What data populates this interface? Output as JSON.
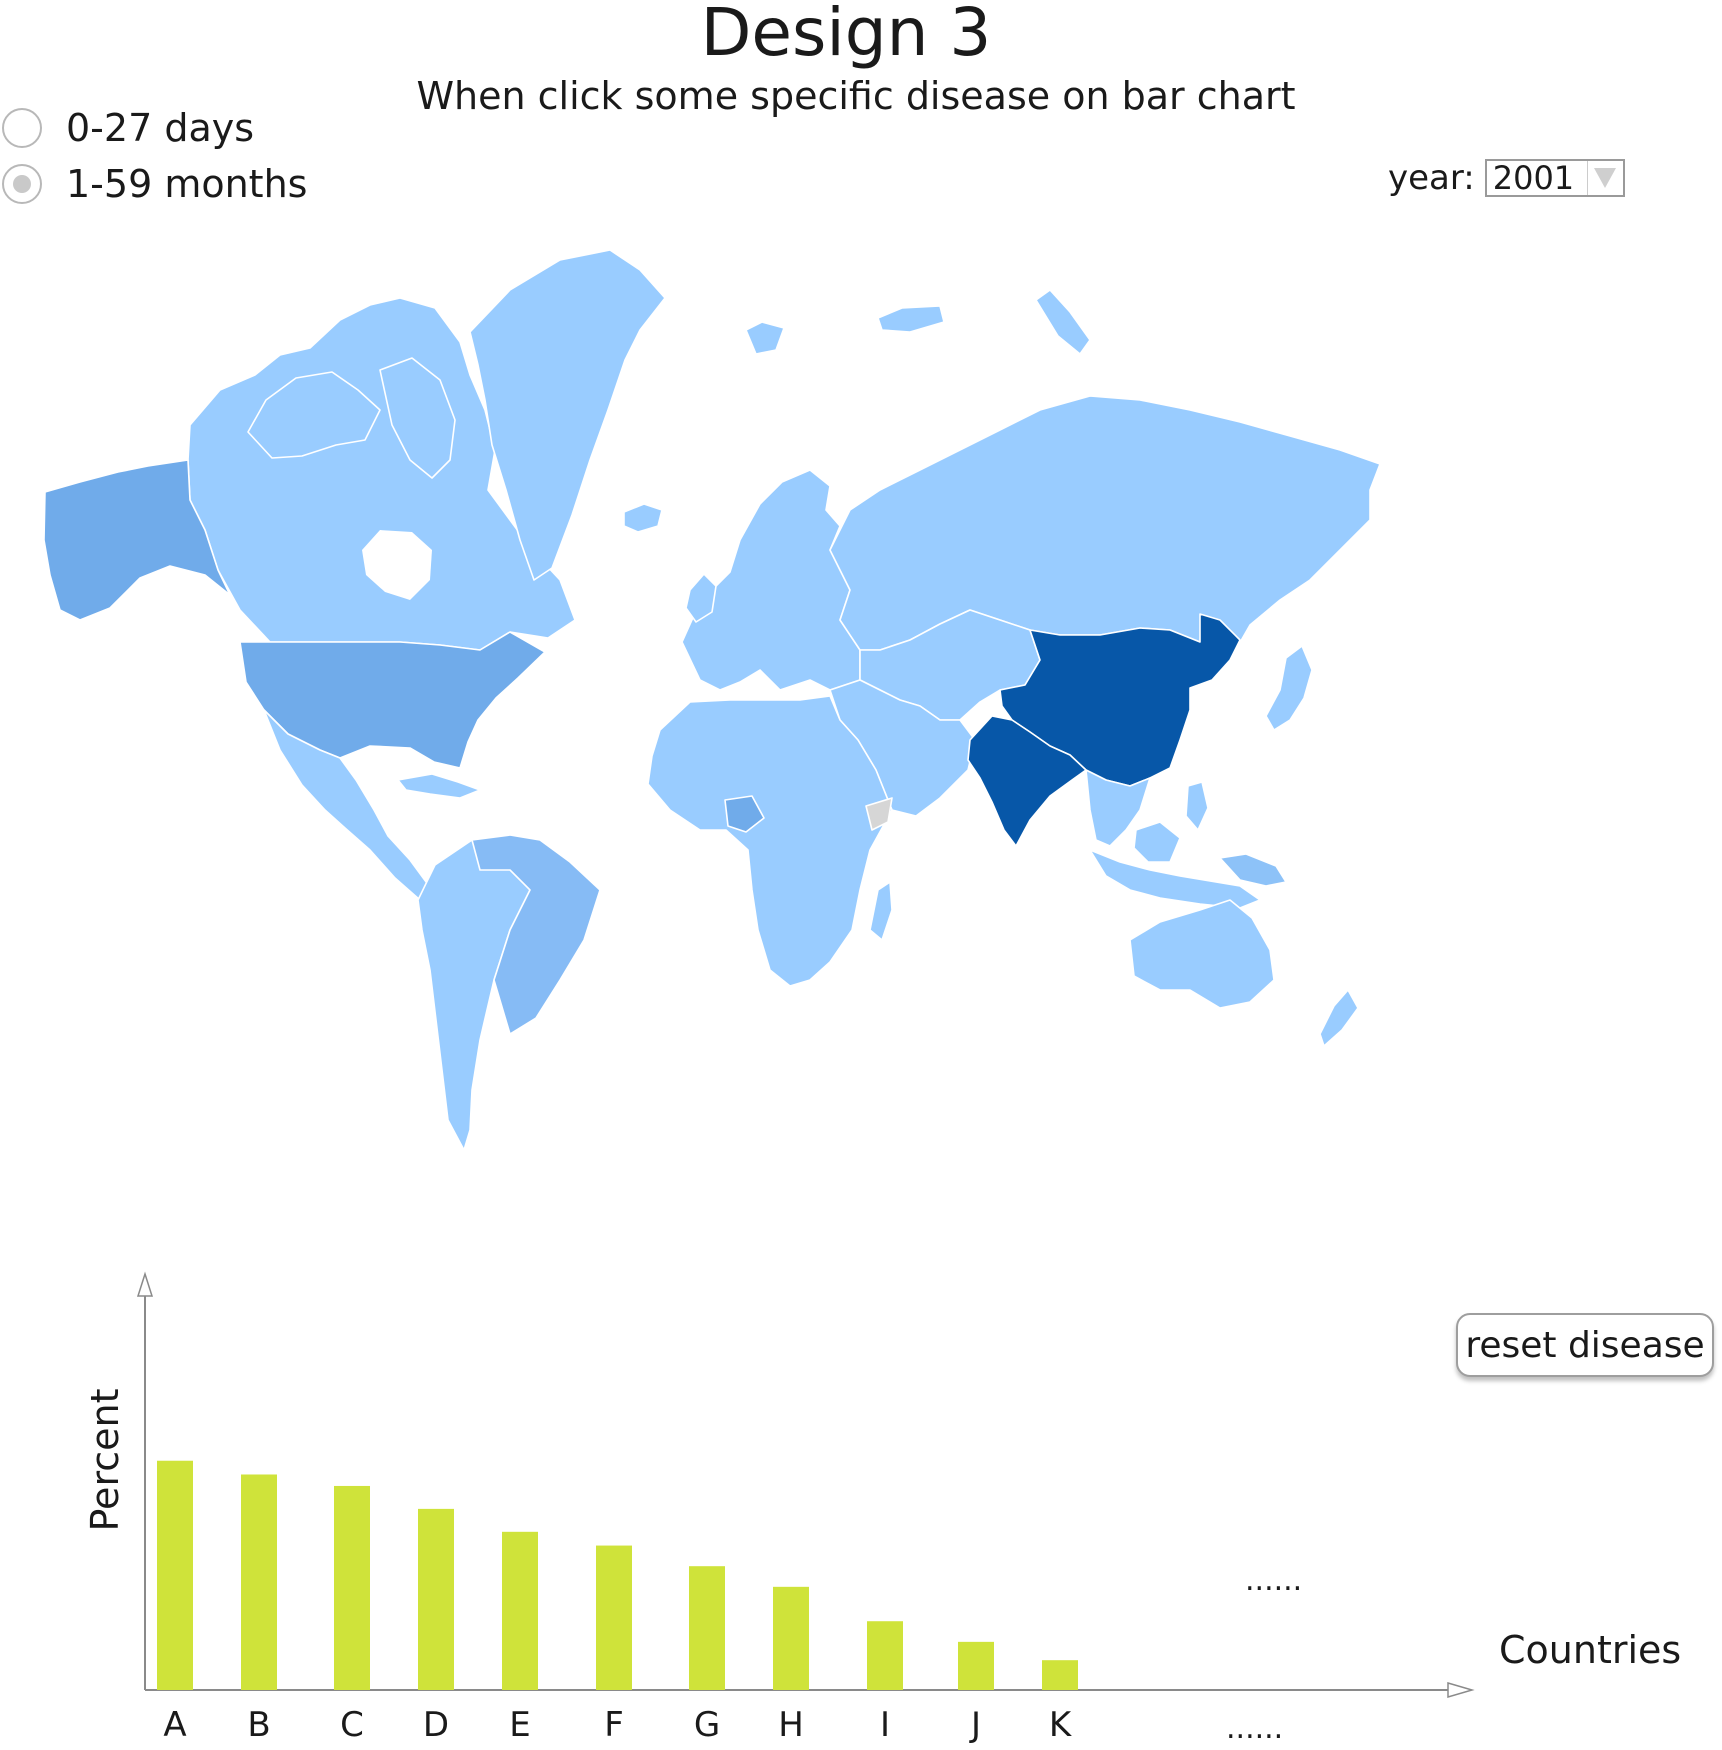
{
  "header": {
    "title": "Design 3",
    "subtitle": "When click some specific disease on bar chart"
  },
  "age_filter": {
    "options": [
      {
        "label": "0-27 days",
        "selected": false
      },
      {
        "label": "1-59 months",
        "selected": true
      }
    ]
  },
  "year_control": {
    "label": "year:",
    "value": "2001"
  },
  "map": {
    "colors": {
      "ocean": "#ffffff",
      "land_light": "#99ccff",
      "land_medium": "#70abea",
      "land_highlight": "#0757a8",
      "border": "#ffffff"
    },
    "highlighted_regions": [
      "China",
      "India"
    ],
    "medium_regions": [
      "United States",
      "Alaska",
      "Brazil"
    ]
  },
  "reset_button": {
    "label": "reset disease"
  },
  "chart_data": {
    "type": "bar",
    "xlabel": "Countries",
    "ylabel": "Percent",
    "categories": [
      "A",
      "B",
      "C",
      "D",
      "E",
      "F",
      "G",
      "H",
      "I",
      "J",
      "K"
    ],
    "values": [
      100,
      94,
      89,
      79,
      69,
      63,
      54,
      45,
      30,
      21,
      13
    ],
    "ylim": [
      0,
      164
    ],
    "continuation": "......",
    "bar_color": "#cfe33a",
    "grid": false
  }
}
